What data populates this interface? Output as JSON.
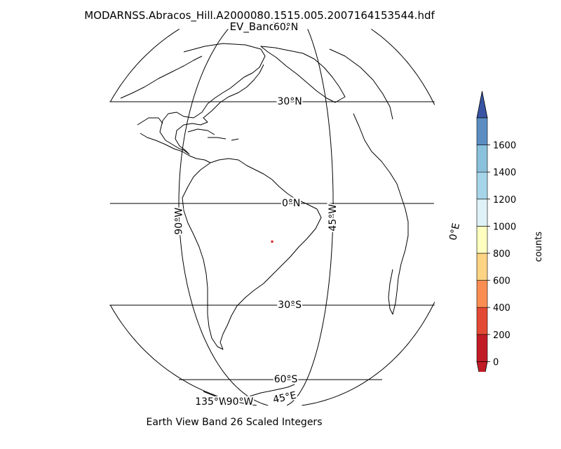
{
  "title": "MODARNSS.Abracos_Hill.A2000080.1515.005.2007164153544.hdf",
  "subtitle": "EV_Band26",
  "xlabel": "Earth View Band 26 Scaled Integers",
  "map": {
    "projection": "orthographic",
    "center_lon": -60,
    "center_lat": 0,
    "parallels": [
      {
        "lat": 60,
        "label": "60°N"
      },
      {
        "lat": 30,
        "label": "30°N"
      },
      {
        "lat": 0,
        "label": "0°N"
      },
      {
        "lat": -30,
        "label": "30°S"
      },
      {
        "lat": -60,
        "label": "60°S"
      }
    ],
    "meridians": [
      {
        "lon": -135,
        "label": ""
      },
      {
        "lon": -90,
        "label": "90°W"
      },
      {
        "lon": -45,
        "label": "45°W"
      },
      {
        "lon": 0,
        "label": "0°E"
      },
      {
        "lon": 45,
        "label": "45°E"
      }
    ],
    "overlap_labels": [
      "135°W",
      "90°W"
    ],
    "data_point": {
      "lat": -10.8,
      "lon": -62.4,
      "color": "#d7191c"
    }
  },
  "colorbar": {
    "label": "counts",
    "ticks": [
      "0",
      "200",
      "400",
      "600",
      "800",
      "1000",
      "1200",
      "1400",
      "1600"
    ],
    "colors": [
      "#c11b26",
      "#e34a33",
      "#f98d52",
      "#fdd384",
      "#ffffbf",
      "#dff2f7",
      "#a6d5e9",
      "#8ac1dc",
      "#5b8dc3"
    ],
    "under_color": "#c11b26",
    "over_color": "#3954a3"
  }
}
